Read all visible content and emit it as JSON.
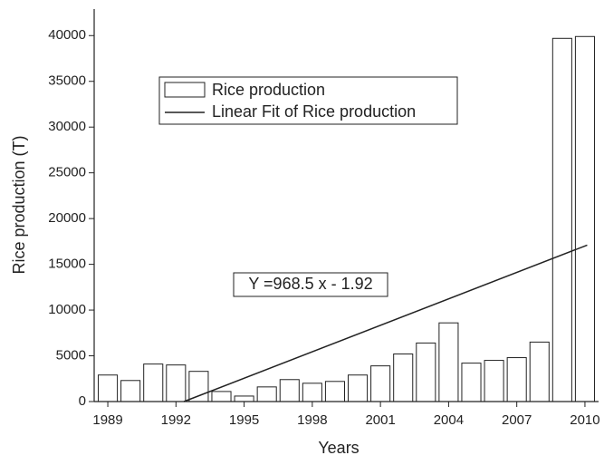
{
  "chart_data": {
    "type": "bar",
    "x_label": "Years",
    "y_label": "Rice production (T)",
    "x": [
      1989,
      1990,
      1991,
      1992,
      1993,
      1994,
      1995,
      1996,
      1997,
      1998,
      1999,
      2000,
      2001,
      2002,
      2003,
      2004,
      2005,
      2006,
      2007,
      2008,
      2009,
      2010
    ],
    "series": [
      {
        "name": "Rice production",
        "color": "#ffffff",
        "values": [
          2900,
          2300,
          4100,
          4000,
          3300,
          1100,
          600,
          1600,
          2400,
          2000,
          2200,
          2900,
          3900,
          5200,
          6400,
          8600,
          4200,
          4500,
          4800,
          6500,
          39700,
          39900
        ]
      },
      {
        "name": "Linear Fit of Rice production",
        "type": "line",
        "color": "#222222",
        "x": [
          1992.35,
          2010.1
        ],
        "values": [
          0,
          17100
        ]
      }
    ],
    "annotation": "Y =968.5 x - 1.92",
    "xlim": [
      1988.4,
      2010.6
    ],
    "xticks": [
      1989,
      1992,
      1995,
      1998,
      2001,
      2004,
      2007,
      2010
    ],
    "ylim": [
      0,
      42900
    ],
    "yticks": [
      0,
      5000,
      10000,
      15000,
      20000,
      25000,
      30000,
      35000,
      40000
    ]
  }
}
